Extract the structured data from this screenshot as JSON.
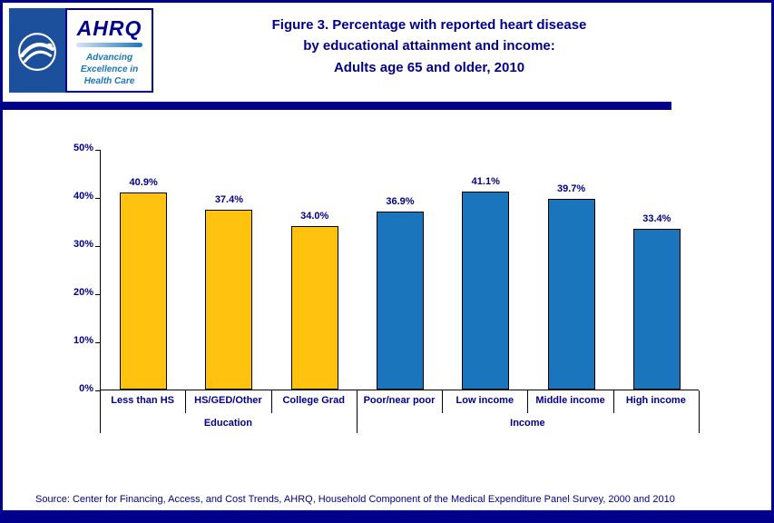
{
  "colors": {
    "navy": "#00008B",
    "education_bar": "#FFC20E",
    "income_bar": "#1B75BC",
    "axis": "#000000",
    "hhs_logo_blue": "#1C4F9C"
  },
  "header": {
    "title_lines": [
      "Figure 3. Percentage with reported heart disease",
      "by educational attainment and income:",
      "Adults age 65 and older, 2010"
    ],
    "ahrq_logo": {
      "name": "AHRQ",
      "tagline_lines": [
        "Advancing",
        "Excellence in",
        "Health Care"
      ]
    }
  },
  "chart_data": {
    "type": "bar",
    "title": "Figure 3. Percentage with reported heart disease by educational attainment and income: Adults age 65 and older, 2010",
    "xlabel": "",
    "ylabel": "",
    "ylim": [
      0,
      50
    ],
    "ytick_labels": [
      "0%",
      "10%",
      "20%",
      "30%",
      "40%",
      "50%"
    ],
    "grid": false,
    "legend": "none",
    "group_axis": true,
    "series": [
      {
        "name": "Education",
        "color": "#FFC20E",
        "categories": [
          "Less than HS",
          "HS/GED/Other",
          "College Grad"
        ],
        "values": [
          40.9,
          37.4,
          34.0
        ],
        "value_labels": [
          "40.9%",
          "37.4%",
          "34.0%"
        ]
      },
      {
        "name": "Income",
        "color": "#1B75BC",
        "categories": [
          "Poor/near poor",
          "Low income",
          "Middle income",
          "High income"
        ],
        "values": [
          36.9,
          41.1,
          39.7,
          33.4
        ],
        "value_labels": [
          "36.9%",
          "41.1%",
          "39.7%",
          "33.4%"
        ]
      }
    ]
  },
  "footer": {
    "source": "Source: Center for Financing, Access, and Cost Trends, AHRQ, Household Component of the Medical Expenditure Panel Survey, 2000 and 2010"
  }
}
